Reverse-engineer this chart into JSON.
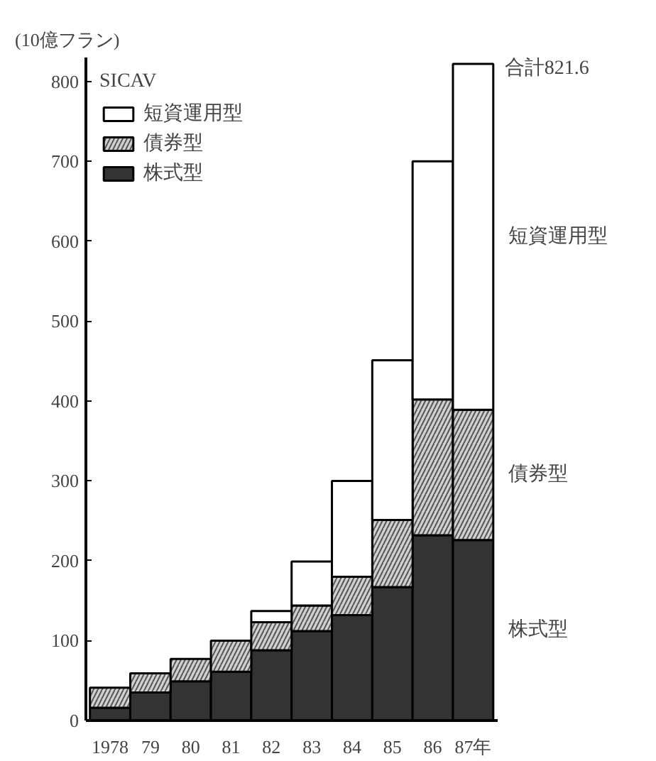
{
  "chart_data": {
    "type": "bar",
    "stacked": true,
    "ylabel": "(10億フラン)",
    "legend_title": "SICAV",
    "legend": "top left",
    "categories": [
      "1978",
      "79",
      "80",
      "81",
      "82",
      "83",
      "84",
      "85",
      "86",
      "87年"
    ],
    "series": [
      {
        "name": "株式型",
        "color": "#333333",
        "values": [
          16,
          35,
          49,
          61,
          88,
          112,
          132,
          167,
          232,
          226
        ]
      },
      {
        "name": "債券型",
        "color": "#d0d0d0",
        "values": [
          25,
          24,
          28,
          39,
          35,
          32,
          48,
          84,
          170,
          163
        ]
      },
      {
        "name": "短資運用型",
        "color": "#ffffff",
        "values": [
          null,
          null,
          null,
          null,
          14,
          55,
          120,
          200,
          298,
          433
        ]
      }
    ],
    "ylim": [
      0,
      830
    ],
    "yticks": [
      0,
      100,
      200,
      300,
      400,
      500,
      600,
      700,
      800
    ],
    "grid": false,
    "annotations": [
      {
        "text": "合計821.6",
        "x": "87年",
        "y": 821.6
      }
    ]
  }
}
